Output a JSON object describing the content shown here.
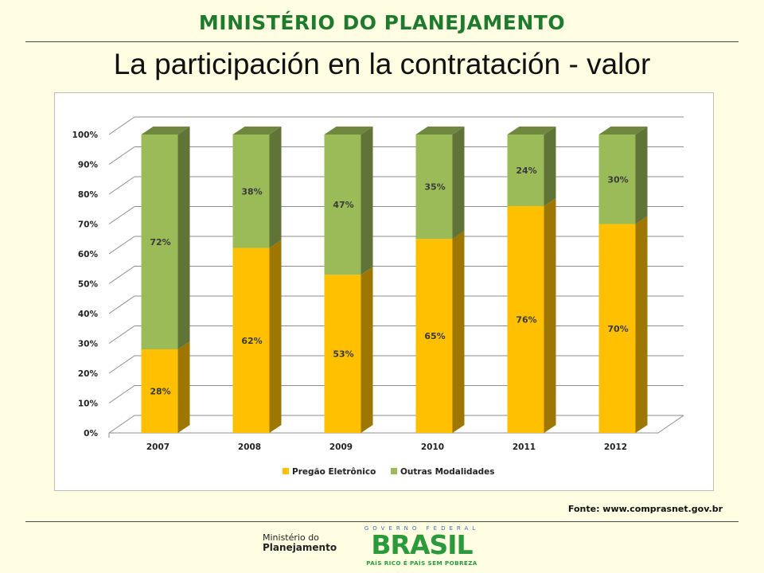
{
  "header": {
    "ministry_title": "MINISTÉRIO DO PLANEJAMENTO"
  },
  "slide": {
    "title": "La participación en la contratación - valor"
  },
  "chart_data": {
    "type": "bar",
    "stacked": true,
    "three_d": true,
    "categories": [
      "2007",
      "2008",
      "2009",
      "2010",
      "2011",
      "2012"
    ],
    "series": [
      {
        "name": "Pregão Eletrônico",
        "values": [
          28,
          62,
          53,
          65,
          76,
          70
        ],
        "labels": [
          "28%",
          "62%",
          "53%",
          "65%",
          "76%",
          "70%"
        ],
        "color": "#fec000"
      },
      {
        "name": "Outras Modalidades",
        "values": [
          72,
          38,
          47,
          35,
          24,
          30
        ],
        "labels": [
          "72%",
          "38%",
          "47%",
          "35%",
          "24%",
          "30%"
        ],
        "color": "#9bbb59"
      }
    ],
    "yticks": [
      "0%",
      "10%",
      "20%",
      "30%",
      "40%",
      "50%",
      "60%",
      "70%",
      "80%",
      "90%",
      "100%"
    ],
    "ylim": [
      0,
      100
    ],
    "ylabel": "",
    "xlabel": "",
    "legend_position": "bottom",
    "grid": true
  },
  "source": {
    "text": "Fonte: www.comprasnet.gov.br"
  },
  "footer": {
    "ministry_line1": "Ministério do",
    "ministry_line2": "Planejamento",
    "gov_federal": "GOVERNO FEDERAL",
    "brasil": "BRASIL",
    "slogan": "PAÍS RICO É PAÍS SEM POBREZA"
  }
}
